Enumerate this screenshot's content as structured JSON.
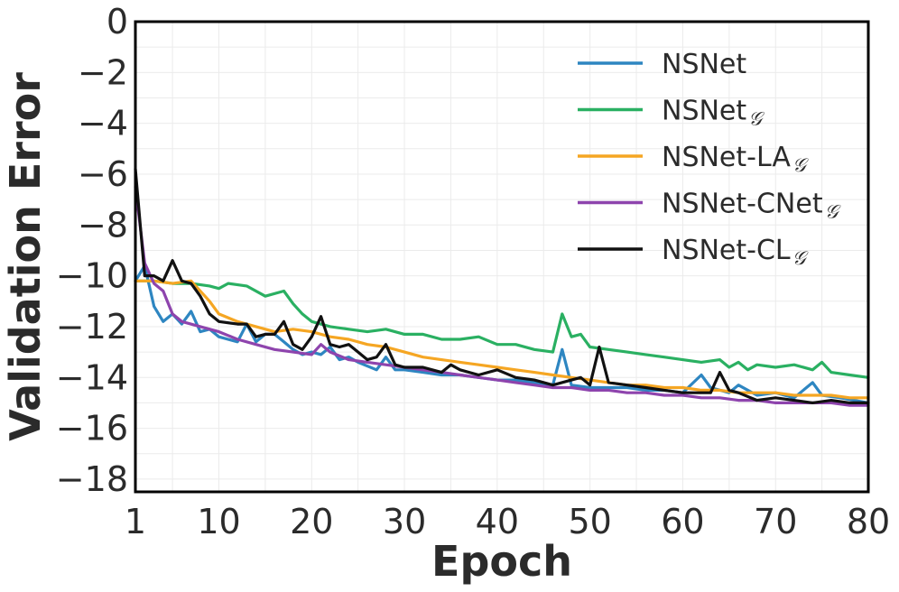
{
  "chart_data": {
    "type": "line",
    "title": "",
    "xlabel": "Epoch",
    "ylabel": "Validation Error",
    "xlim": [
      1,
      80
    ],
    "ylim": [
      -18.5,
      0
    ],
    "x_ticks": [
      1,
      10,
      20,
      30,
      40,
      50,
      60,
      70,
      80
    ],
    "y_ticks": [
      0,
      -2,
      -4,
      -6,
      -8,
      -10,
      -12,
      -14,
      -16,
      -18
    ],
    "grid": true,
    "legend_position": "top-right",
    "series": [
      {
        "name": "NSNet",
        "name_base": "NSNet",
        "name_sub": "",
        "color": "#2e86c1",
        "points": [
          [
            1,
            -10.2
          ],
          [
            2,
            -9.6
          ],
          [
            3,
            -11.2
          ],
          [
            4,
            -11.8
          ],
          [
            5,
            -11.5
          ],
          [
            6,
            -11.9
          ],
          [
            7,
            -11.4
          ],
          [
            8,
            -12.2
          ],
          [
            9,
            -12.1
          ],
          [
            10,
            -12.4
          ],
          [
            12,
            -12.6
          ],
          [
            13,
            -11.9
          ],
          [
            14,
            -12.6
          ],
          [
            15,
            -12.3
          ],
          [
            16,
            -12.3
          ],
          [
            17,
            -12.6
          ],
          [
            18,
            -12.9
          ],
          [
            19,
            -13.1
          ],
          [
            20,
            -13.0
          ],
          [
            21,
            -13.1
          ],
          [
            22,
            -12.8
          ],
          [
            23,
            -13.3
          ],
          [
            24,
            -13.2
          ],
          [
            25,
            -13.4
          ],
          [
            27,
            -13.7
          ],
          [
            28,
            -13.2
          ],
          [
            29,
            -13.7
          ],
          [
            30,
            -13.7
          ],
          [
            32,
            -13.8
          ],
          [
            34,
            -13.9
          ],
          [
            36,
            -13.9
          ],
          [
            38,
            -14.0
          ],
          [
            40,
            -14.1
          ],
          [
            42,
            -14.1
          ],
          [
            44,
            -14.2
          ],
          [
            46,
            -14.3
          ],
          [
            47,
            -12.9
          ],
          [
            48,
            -14.3
          ],
          [
            50,
            -14.4
          ],
          [
            52,
            -14.4
          ],
          [
            54,
            -14.4
          ],
          [
            56,
            -14.5
          ],
          [
            58,
            -14.5
          ],
          [
            60,
            -14.6
          ],
          [
            62,
            -13.9
          ],
          [
            63,
            -14.4
          ],
          [
            65,
            -14.6
          ],
          [
            66,
            -14.3
          ],
          [
            68,
            -14.7
          ],
          [
            70,
            -14.6
          ],
          [
            72,
            -14.8
          ],
          [
            74,
            -14.2
          ],
          [
            75,
            -14.7
          ],
          [
            77,
            -14.8
          ],
          [
            80,
            -15.0
          ]
        ]
      },
      {
        "name": "NSNet𝒢",
        "name_base": "NSNet",
        "name_sub": "𝒢",
        "color": "#2ab062",
        "points": [
          [
            1,
            -10.2
          ],
          [
            3,
            -10.2
          ],
          [
            5,
            -10.3
          ],
          [
            7,
            -10.3
          ],
          [
            9,
            -10.4
          ],
          [
            10,
            -10.5
          ],
          [
            11,
            -10.3
          ],
          [
            13,
            -10.4
          ],
          [
            15,
            -10.8
          ],
          [
            17,
            -10.6
          ],
          [
            18,
            -11.1
          ],
          [
            19,
            -11.5
          ],
          [
            20,
            -11.8
          ],
          [
            22,
            -12.0
          ],
          [
            24,
            -12.1
          ],
          [
            26,
            -12.2
          ],
          [
            28,
            -12.1
          ],
          [
            30,
            -12.3
          ],
          [
            32,
            -12.3
          ],
          [
            34,
            -12.5
          ],
          [
            36,
            -12.5
          ],
          [
            38,
            -12.4
          ],
          [
            40,
            -12.7
          ],
          [
            42,
            -12.7
          ],
          [
            44,
            -12.9
          ],
          [
            46,
            -13.0
          ],
          [
            47,
            -11.5
          ],
          [
            48,
            -12.4
          ],
          [
            49,
            -12.3
          ],
          [
            50,
            -12.8
          ],
          [
            52,
            -12.9
          ],
          [
            54,
            -13.0
          ],
          [
            56,
            -13.1
          ],
          [
            58,
            -13.2
          ],
          [
            60,
            -13.3
          ],
          [
            62,
            -13.4
          ],
          [
            64,
            -13.3
          ],
          [
            65,
            -13.6
          ],
          [
            66,
            -13.4
          ],
          [
            67,
            -13.7
          ],
          [
            68,
            -13.5
          ],
          [
            70,
            -13.6
          ],
          [
            72,
            -13.5
          ],
          [
            74,
            -13.7
          ],
          [
            75,
            -13.4
          ],
          [
            76,
            -13.8
          ],
          [
            78,
            -13.9
          ],
          [
            80,
            -14.0
          ]
        ]
      },
      {
        "name": "NSNet-LA𝒢",
        "name_base": "NSNet-LA",
        "name_sub": "𝒢",
        "color": "#f5a623",
        "points": [
          [
            1,
            -10.2
          ],
          [
            3,
            -10.2
          ],
          [
            5,
            -10.3
          ],
          [
            7,
            -10.2
          ],
          [
            9,
            -11.0
          ],
          [
            10,
            -11.5
          ],
          [
            12,
            -11.8
          ],
          [
            14,
            -12.0
          ],
          [
            16,
            -12.2
          ],
          [
            18,
            -12.1
          ],
          [
            20,
            -12.2
          ],
          [
            22,
            -12.4
          ],
          [
            24,
            -12.5
          ],
          [
            26,
            -12.7
          ],
          [
            28,
            -12.8
          ],
          [
            30,
            -13.0
          ],
          [
            32,
            -13.2
          ],
          [
            34,
            -13.3
          ],
          [
            36,
            -13.4
          ],
          [
            38,
            -13.5
          ],
          [
            40,
            -13.6
          ],
          [
            42,
            -13.7
          ],
          [
            44,
            -13.8
          ],
          [
            46,
            -13.9
          ],
          [
            48,
            -14.0
          ],
          [
            50,
            -14.1
          ],
          [
            52,
            -14.2
          ],
          [
            54,
            -14.3
          ],
          [
            56,
            -14.3
          ],
          [
            58,
            -14.4
          ],
          [
            60,
            -14.4
          ],
          [
            62,
            -14.5
          ],
          [
            64,
            -14.5
          ],
          [
            66,
            -14.6
          ],
          [
            68,
            -14.6
          ],
          [
            70,
            -14.6
          ],
          [
            72,
            -14.7
          ],
          [
            74,
            -14.7
          ],
          [
            76,
            -14.7
          ],
          [
            78,
            -14.8
          ],
          [
            80,
            -14.8
          ]
        ]
      },
      {
        "name": "NSNet-CNet𝒢",
        "name_base": "NSNet-CNet",
        "name_sub": "𝒢",
        "color": "#8e44ad",
        "points": [
          [
            1,
            -6.5
          ],
          [
            2,
            -9.5
          ],
          [
            3,
            -10.3
          ],
          [
            4,
            -10.6
          ],
          [
            5,
            -11.5
          ],
          [
            6,
            -11.8
          ],
          [
            8,
            -12.0
          ],
          [
            10,
            -12.2
          ],
          [
            12,
            -12.5
          ],
          [
            14,
            -12.7
          ],
          [
            16,
            -12.9
          ],
          [
            18,
            -13.0
          ],
          [
            20,
            -13.1
          ],
          [
            21,
            -12.7
          ],
          [
            22,
            -13.0
          ],
          [
            24,
            -13.3
          ],
          [
            26,
            -13.4
          ],
          [
            28,
            -13.5
          ],
          [
            30,
            -13.6
          ],
          [
            32,
            -13.7
          ],
          [
            34,
            -13.8
          ],
          [
            36,
            -13.9
          ],
          [
            38,
            -14.0
          ],
          [
            40,
            -14.1
          ],
          [
            42,
            -14.2
          ],
          [
            44,
            -14.3
          ],
          [
            46,
            -14.4
          ],
          [
            48,
            -14.4
          ],
          [
            50,
            -14.5
          ],
          [
            52,
            -14.5
          ],
          [
            54,
            -14.6
          ],
          [
            56,
            -14.6
          ],
          [
            58,
            -14.7
          ],
          [
            60,
            -14.7
          ],
          [
            62,
            -14.8
          ],
          [
            64,
            -14.8
          ],
          [
            66,
            -14.9
          ],
          [
            68,
            -14.9
          ],
          [
            70,
            -15.0
          ],
          [
            72,
            -15.0
          ],
          [
            74,
            -15.0
          ],
          [
            76,
            -15.0
          ],
          [
            78,
            -15.1
          ],
          [
            80,
            -15.1
          ]
        ]
      },
      {
        "name": "NSNet-CL𝒢",
        "name_base": "NSNet-CL",
        "name_sub": "𝒢",
        "color": "#111111",
        "points": [
          [
            1,
            -5.8
          ],
          [
            2,
            -10.0
          ],
          [
            3,
            -10.0
          ],
          [
            4,
            -10.2
          ],
          [
            5,
            -9.4
          ],
          [
            6,
            -10.2
          ],
          [
            7,
            -10.3
          ],
          [
            8,
            -10.8
          ],
          [
            9,
            -11.5
          ],
          [
            10,
            -11.8
          ],
          [
            12,
            -11.9
          ],
          [
            13,
            -11.9
          ],
          [
            14,
            -12.4
          ],
          [
            15,
            -12.3
          ],
          [
            16,
            -12.3
          ],
          [
            17,
            -11.8
          ],
          [
            18,
            -12.7
          ],
          [
            19,
            -12.9
          ],
          [
            20,
            -12.4
          ],
          [
            21,
            -11.6
          ],
          [
            22,
            -12.7
          ],
          [
            23,
            -12.8
          ],
          [
            24,
            -12.7
          ],
          [
            25,
            -13.0
          ],
          [
            26,
            -13.3
          ],
          [
            27,
            -13.2
          ],
          [
            28,
            -12.7
          ],
          [
            29,
            -13.5
          ],
          [
            30,
            -13.6
          ],
          [
            32,
            -13.6
          ],
          [
            34,
            -13.8
          ],
          [
            35,
            -13.5
          ],
          [
            36,
            -13.7
          ],
          [
            38,
            -13.9
          ],
          [
            40,
            -13.7
          ],
          [
            42,
            -14.0
          ],
          [
            44,
            -14.1
          ],
          [
            46,
            -14.3
          ],
          [
            48,
            -14.1
          ],
          [
            49,
            -14.0
          ],
          [
            50,
            -14.3
          ],
          [
            51,
            -12.8
          ],
          [
            52,
            -14.2
          ],
          [
            54,
            -14.3
          ],
          [
            56,
            -14.4
          ],
          [
            58,
            -14.5
          ],
          [
            60,
            -14.6
          ],
          [
            62,
            -14.6
          ],
          [
            63,
            -14.6
          ],
          [
            64,
            -13.8
          ],
          [
            65,
            -14.5
          ],
          [
            66,
            -14.6
          ],
          [
            68,
            -14.9
          ],
          [
            70,
            -14.8
          ],
          [
            72,
            -14.9
          ],
          [
            74,
            -15.0
          ],
          [
            76,
            -14.9
          ],
          [
            78,
            -15.0
          ],
          [
            80,
            -15.0
          ]
        ]
      }
    ]
  }
}
